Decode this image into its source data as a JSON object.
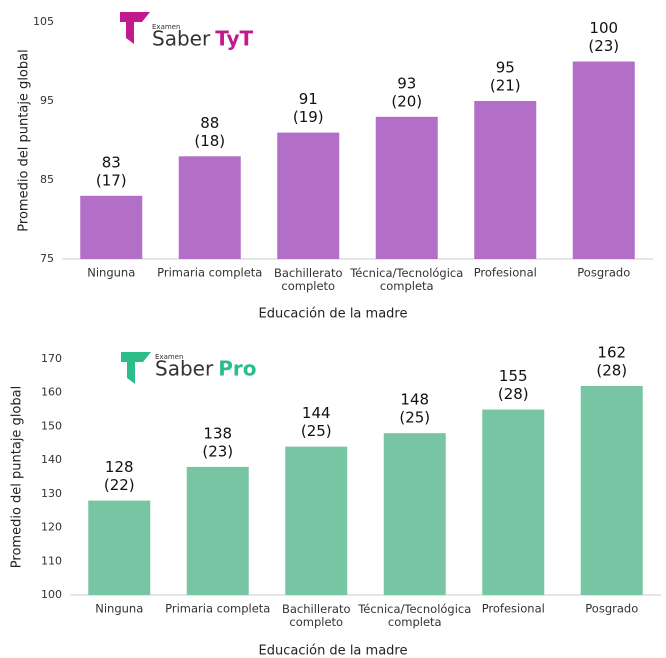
{
  "chart_data": [
    {
      "type": "bar",
      "logo": {
        "small": "Examen",
        "name": "Saber",
        "suffix": "TyT"
      },
      "ylabel": "Promedio del puntaje global",
      "xlabel": "Educación de la madre",
      "categories": [
        "Ninguna",
        "Primaria completa",
        "Bachillerato\ncompleto",
        "Técnica/Tecnológica\ncompleta",
        "Profesional",
        "Posgrado"
      ],
      "values": [
        83,
        88,
        91,
        93,
        95,
        100
      ],
      "sd_labels": [
        "(17)",
        "(18)",
        "(19)",
        "(20)",
        "(21)",
        "(23)"
      ],
      "color": "#b36fc8",
      "ylim": [
        75,
        105
      ],
      "yticks": [
        75,
        85,
        95,
        105
      ]
    },
    {
      "type": "bar",
      "logo": {
        "small": "Examen",
        "name": "Saber",
        "suffix": "Pro"
      },
      "ylabel": "Promedio del puntaje global",
      "xlabel": "Educación de la madre",
      "categories": [
        "Ninguna",
        "Primaria completa",
        "Bachillerato\ncompleto",
        "Técnica/Tecnológica\ncompleta",
        "Profesional",
        "Posgrado"
      ],
      "values": [
        128,
        138,
        144,
        148,
        155,
        162
      ],
      "sd_labels": [
        "(22)",
        "(23)",
        "(25)",
        "(25)",
        "(28)",
        "(28)"
      ],
      "color": "#78c5a3",
      "ylim": [
        100,
        170
      ],
      "yticks": [
        100,
        110,
        120,
        130,
        140,
        150,
        160,
        170
      ]
    }
  ]
}
